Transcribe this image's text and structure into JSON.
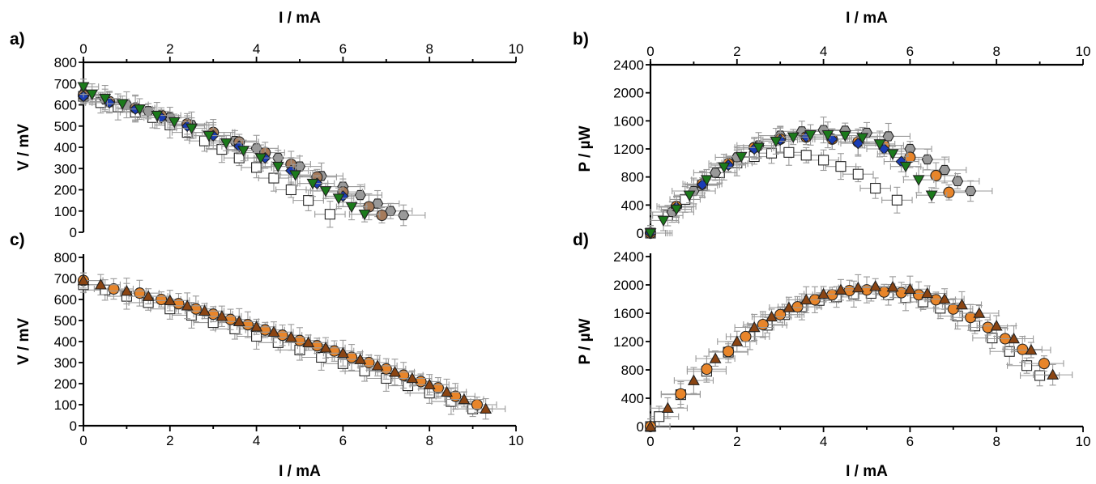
{
  "chart_data": [
    {
      "panel": "a)",
      "type": "scatter",
      "xlabel": "I / mA",
      "ylabel": "V / mV",
      "xlim": [
        0,
        10
      ],
      "ylim": [
        0,
        800
      ],
      "xticks": [
        "0",
        "2",
        "4",
        "6",
        "8",
        "10"
      ],
      "yticks": [
        "0",
        "100",
        "200",
        "300",
        "400",
        "500",
        "600",
        "700",
        "800"
      ],
      "x_axis_position": "top",
      "series": [
        {
          "marker": "square",
          "color": "#ffffff",
          "x": [
            0.0,
            0.4,
            0.8,
            1.2,
            1.6,
            2.0,
            2.4,
            2.8,
            3.2,
            3.6,
            4.0,
            4.4,
            4.8,
            5.2,
            5.7
          ],
          "y": [
            640,
            610,
            590,
            565,
            540,
            505,
            470,
            430,
            390,
            350,
            305,
            255,
            200,
            150,
            85
          ],
          "xerr": 0.35
        },
        {
          "marker": "hexagon",
          "color": "#999999",
          "x": [
            0.0,
            0.5,
            1.0,
            1.5,
            2.0,
            2.5,
            3.0,
            3.5,
            4.0,
            4.5,
            5.0,
            5.5,
            6.0,
            6.4,
            6.8,
            7.1,
            7.4
          ],
          "y": [
            650,
            625,
            600,
            570,
            540,
            505,
            470,
            430,
            395,
            350,
            310,
            265,
            215,
            175,
            135,
            100,
            80
          ],
          "xerr": 0.5
        },
        {
          "marker": "circle",
          "color": "#a67b5b",
          "x": [
            0.0,
            0.6,
            1.2,
            1.8,
            2.4,
            3.0,
            3.6,
            4.2,
            4.8,
            5.4,
            6.0,
            6.6,
            6.9
          ],
          "y": [
            645,
            615,
            585,
            550,
            510,
            470,
            425,
            375,
            320,
            260,
            190,
            120,
            80
          ],
          "xerr": 0.45
        },
        {
          "marker": "diamond",
          "color": "#1a3db5",
          "x": [
            0.0,
            0.6,
            1.2,
            1.8,
            2.4,
            3.0,
            3.6,
            4.2,
            4.8,
            5.4,
            6.0
          ],
          "y": [
            640,
            610,
            580,
            540,
            500,
            455,
            405,
            350,
            290,
            230,
            170
          ],
          "xerr": 0.4
        },
        {
          "marker": "triangle-down",
          "color": "#1b7a1b",
          "x": [
            0.0,
            0.2,
            0.5,
            0.9,
            1.3,
            1.7,
            2.1,
            2.5,
            2.9,
            3.3,
            3.7,
            4.1,
            4.5,
            4.9,
            5.3,
            5.6,
            5.9,
            6.2,
            6.5
          ],
          "y": [
            685,
            650,
            630,
            605,
            580,
            550,
            520,
            490,
            455,
            420,
            385,
            350,
            310,
            270,
            230,
            195,
            160,
            120,
            85
          ],
          "xerr": 0.35
        }
      ]
    },
    {
      "panel": "b)",
      "type": "scatter",
      "xlabel": "I / mA",
      "ylabel": "P / µW",
      "xlim": [
        0,
        10
      ],
      "ylim": [
        0,
        2400
      ],
      "xticks": [
        "0",
        "2",
        "4",
        "6",
        "8",
        "10"
      ],
      "yticks": [
        "0",
        "400",
        "800",
        "1200",
        "1600",
        "2000",
        "2400"
      ],
      "x_axis_position": "top",
      "series": [
        {
          "marker": "square",
          "color": "#ffffff",
          "x": [
            0.0,
            0.4,
            0.8,
            1.2,
            1.6,
            2.0,
            2.4,
            2.8,
            3.2,
            3.6,
            4.0,
            4.4,
            4.8,
            5.2,
            5.7
          ],
          "y": [
            0,
            250,
            480,
            680,
            860,
            1000,
            1090,
            1140,
            1150,
            1110,
            1040,
            950,
            840,
            640,
            470
          ],
          "xerr": 0.35
        },
        {
          "marker": "hexagon",
          "color": "#999999",
          "x": [
            0.0,
            0.5,
            1.0,
            1.5,
            2.0,
            2.5,
            3.0,
            3.5,
            4.0,
            4.5,
            5.0,
            5.5,
            6.0,
            6.4,
            6.8,
            7.1,
            7.4
          ],
          "y": [
            0,
            300,
            600,
            860,
            1080,
            1250,
            1390,
            1450,
            1470,
            1460,
            1430,
            1380,
            1200,
            1050,
            900,
            740,
            600
          ],
          "xerr": 0.5
        },
        {
          "marker": "circle",
          "color": "#e8852a",
          "x": [
            0.0,
            0.6,
            1.2,
            1.8,
            2.4,
            3.0,
            3.6,
            4.2,
            4.8,
            5.4,
            6.0,
            6.6,
            6.9
          ],
          "y": [
            0,
            380,
            700,
            990,
            1220,
            1340,
            1370,
            1340,
            1300,
            1250,
            1080,
            820,
            580
          ],
          "xerr": 0.45
        },
        {
          "marker": "diamond",
          "color": "#1a3db5",
          "x": [
            0.0,
            0.6,
            1.2,
            1.8,
            2.4,
            3.0,
            3.6,
            4.2,
            4.8,
            5.4,
            5.8
          ],
          "y": [
            0,
            370,
            690,
            970,
            1200,
            1330,
            1370,
            1340,
            1280,
            1200,
            1020
          ],
          "xerr": 0.4
        },
        {
          "marker": "triangle-down",
          "color": "#1b7a1b",
          "x": [
            0.0,
            0.3,
            0.6,
            0.9,
            1.3,
            1.7,
            2.1,
            2.5,
            2.9,
            3.3,
            3.7,
            4.1,
            4.5,
            4.9,
            5.3,
            5.6,
            5.9,
            6.2,
            6.5
          ],
          "y": [
            0,
            180,
            340,
            540,
            760,
            940,
            1090,
            1220,
            1310,
            1370,
            1400,
            1400,
            1390,
            1360,
            1270,
            1130,
            950,
            760,
            540
          ],
          "xerr": 0.35
        }
      ]
    },
    {
      "panel": "c)",
      "type": "scatter",
      "xlabel": "I / mA",
      "ylabel": "V / mV",
      "xlim": [
        0,
        10
      ],
      "ylim": [
        0,
        800
      ],
      "xticks": [
        "0",
        "2",
        "4",
        "6",
        "8",
        "10"
      ],
      "yticks": [
        "0",
        "100",
        "200",
        "300",
        "400",
        "500",
        "600",
        "700",
        "800"
      ],
      "x_axis_position": "bottom",
      "series": [
        {
          "marker": "square",
          "color": "#ffffff",
          "x": [
            0.0,
            0.5,
            1.0,
            1.5,
            2.0,
            2.5,
            3.0,
            3.5,
            4.0,
            4.5,
            5.0,
            5.5,
            6.0,
            6.5,
            7.0,
            7.5,
            8.0,
            8.5,
            9.0
          ],
          "y": [
            670,
            645,
            615,
            585,
            555,
            525,
            490,
            460,
            425,
            395,
            360,
            325,
            295,
            260,
            225,
            190,
            155,
            115,
            80
          ],
          "xerr": 0.45
        },
        {
          "marker": "circle",
          "color": "#e8852a",
          "x": [
            0.0,
            0.7,
            1.3,
            1.8,
            2.2,
            2.6,
            3.0,
            3.4,
            3.8,
            4.2,
            4.6,
            5.0,
            5.4,
            5.8,
            6.2,
            6.6,
            7.0,
            7.4,
            7.8,
            8.2,
            8.6,
            9.1
          ],
          "y": [
            690,
            650,
            630,
            600,
            580,
            555,
            530,
            505,
            480,
            455,
            430,
            405,
            380,
            355,
            325,
            300,
            270,
            240,
            210,
            180,
            140,
            100
          ],
          "xerr": 0.45
        },
        {
          "marker": "triangle-up",
          "color": "#8b4513",
          "x": [
            0.0,
            0.4,
            1.0,
            1.5,
            2.0,
            2.4,
            2.8,
            3.2,
            3.6,
            4.0,
            4.4,
            4.8,
            5.2,
            5.6,
            6.0,
            6.4,
            6.8,
            7.2,
            7.6,
            8.0,
            8.4,
            8.8,
            9.3
          ],
          "y": [
            690,
            670,
            640,
            615,
            595,
            570,
            545,
            520,
            495,
            470,
            445,
            420,
            395,
            370,
            345,
            315,
            285,
            255,
            225,
            195,
            160,
            125,
            80
          ],
          "xerr": 0.45
        }
      ]
    },
    {
      "panel": "d)",
      "type": "scatter",
      "xlabel": "I / mA",
      "ylabel": "P / µW",
      "xlim": [
        0,
        10
      ],
      "ylim": [
        0,
        2400
      ],
      "xticks": [
        "0",
        "2",
        "4",
        "6",
        "8",
        "10"
      ],
      "yticks": [
        "0",
        "400",
        "800",
        "1200",
        "1600",
        "2000",
        "2400"
      ],
      "x_axis_position": "bottom",
      "series": [
        {
          "marker": "square",
          "color": "#ffffff",
          "x": [
            0.0,
            0.2,
            0.7,
            1.3,
            1.8,
            2.3,
            2.7,
            3.1,
            3.5,
            3.9,
            4.3,
            4.7,
            5.1,
            5.5,
            5.9,
            6.3,
            6.7,
            7.1,
            7.5,
            7.9,
            8.3,
            8.7,
            9.0
          ],
          "y": [
            0,
            140,
            450,
            780,
            1050,
            1270,
            1430,
            1580,
            1690,
            1780,
            1830,
            1870,
            1880,
            1860,
            1820,
            1760,
            1670,
            1560,
            1420,
            1250,
            1060,
            860,
            720
          ],
          "xerr": 0.45
        },
        {
          "marker": "circle",
          "color": "#e8852a",
          "x": [
            0.0,
            0.7,
            1.3,
            1.8,
            2.2,
            2.6,
            3.0,
            3.4,
            3.8,
            4.2,
            4.6,
            5.0,
            5.4,
            5.8,
            6.2,
            6.6,
            7.0,
            7.4,
            7.8,
            8.2,
            8.6,
            9.1
          ],
          "y": [
            0,
            460,
            810,
            1060,
            1270,
            1440,
            1580,
            1690,
            1790,
            1860,
            1920,
            1930,
            1900,
            1890,
            1860,
            1790,
            1660,
            1540,
            1400,
            1240,
            1090,
            890
          ],
          "xerr": 0.45
        },
        {
          "marker": "triangle-up",
          "color": "#8b4513",
          "x": [
            0.0,
            0.4,
            1.0,
            1.5,
            2.0,
            2.4,
            2.8,
            3.2,
            3.6,
            4.0,
            4.4,
            4.8,
            5.2,
            5.6,
            6.0,
            6.4,
            6.8,
            7.2,
            7.6,
            8.0,
            8.4,
            8.8,
            9.3
          ],
          "y": [
            0,
            260,
            650,
            960,
            1200,
            1400,
            1550,
            1680,
            1790,
            1870,
            1930,
            1960,
            1980,
            1970,
            1940,
            1880,
            1800,
            1720,
            1600,
            1420,
            1240,
            1080,
            730
          ],
          "xerr": 0.45
        }
      ]
    }
  ]
}
